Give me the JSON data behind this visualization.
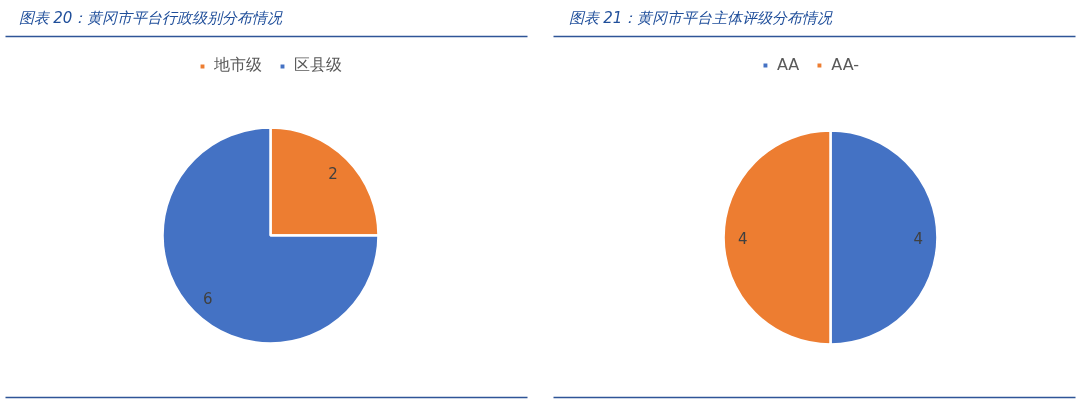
{
  "chart_data": [
    {
      "type": "pie",
      "title": "图表 20：黄冈市平台行政级别分布情况",
      "categories": [
        "地市级",
        "区县级"
      ],
      "values": [
        2,
        6
      ],
      "colors": [
        "#ed7d31",
        "#4472c4"
      ],
      "data_labels": true,
      "legend": "top"
    },
    {
      "type": "pie",
      "title": "图表 21：黄冈市平台主体评级分布情况",
      "categories": [
        "AA",
        "AA-"
      ],
      "values": [
        4,
        4
      ],
      "colors": [
        "#4472c4",
        "#ed7d31"
      ],
      "data_labels": true,
      "legend": "top"
    }
  ]
}
